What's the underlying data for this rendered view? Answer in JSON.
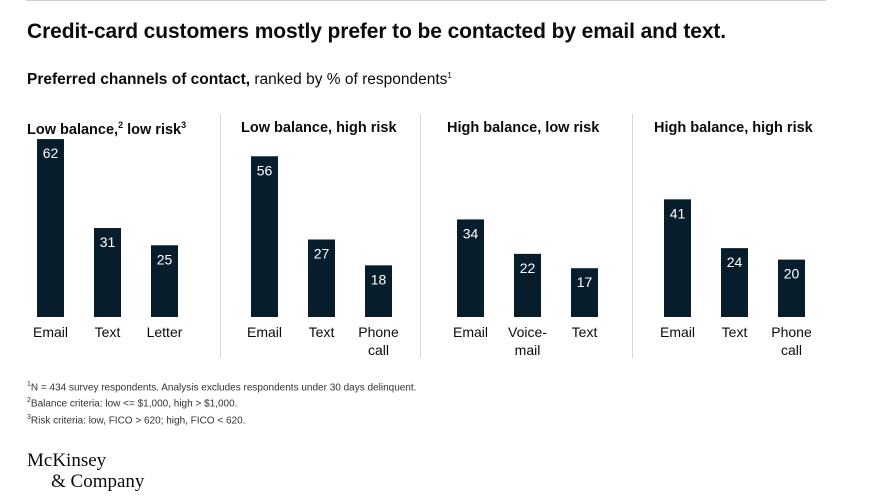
{
  "header": {
    "title": "Credit-card customers mostly prefer to be contacted by email and text.",
    "subtitle_bold": "Preferred channels of contact,",
    "subtitle_rest": " ranked by % of respondents",
    "subtitle_note": "1"
  },
  "panels": [
    {
      "title": "Low balance,",
      "title_note": "2",
      "title_rest": " low risk",
      "title_note2": "3"
    },
    {
      "title": "Low balance, high risk"
    },
    {
      "title": "High balance, low risk"
    },
    {
      "title": "High balance, high risk"
    }
  ],
  "chart_data": [
    {
      "type": "bar",
      "title": "Low balance, low risk",
      "categories": [
        "Email",
        "Text",
        "Letter"
      ],
      "values": [
        62,
        31,
        25
      ],
      "unit": "% of respondents"
    },
    {
      "type": "bar",
      "title": "Low balance, high risk",
      "categories": [
        "Email",
        "Text",
        "Phone call"
      ],
      "values": [
        56,
        27,
        18
      ],
      "unit": "% of respondents"
    },
    {
      "type": "bar",
      "title": "High balance, low risk",
      "categories": [
        "Email",
        "Voice-mail",
        "Text"
      ],
      "values": [
        34,
        22,
        17
      ],
      "unit": "% of respondents"
    },
    {
      "type": "bar",
      "title": "High balance, high risk",
      "categories": [
        "Email",
        "Text",
        "Phone call"
      ],
      "values": [
        41,
        24,
        20
      ],
      "unit": "% of respondents"
    }
  ],
  "category_lines": [
    [
      [
        "Email"
      ],
      [
        "Text"
      ],
      [
        "Letter"
      ]
    ],
    [
      [
        "Email"
      ],
      [
        "Text"
      ],
      [
        "Phone",
        "call"
      ]
    ],
    [
      [
        "Email"
      ],
      [
        "Voice-",
        "mail"
      ],
      [
        "Text"
      ]
    ],
    [
      [
        "Email"
      ],
      [
        "Text"
      ],
      [
        "Phone",
        "call"
      ]
    ]
  ],
  "footnotes": [
    {
      "mark": "1",
      "text": "N = 434 survey respondents. Analysis excludes respondents under 30 days delinquent."
    },
    {
      "mark": "2",
      "text": "Balance criteria: low <= $1,000, high > $1,000."
    },
    {
      "mark": "3",
      "text": "Risk criteria: low, FICO > 620; high, FICO < 620."
    }
  ],
  "logo": {
    "line1": "McKinsey",
    "line2": "& Company"
  },
  "colors": {
    "bar": "#071d2b",
    "bar_label": "#ffffff",
    "text": "#0b0b0b",
    "divider": "#d6d6d6"
  }
}
